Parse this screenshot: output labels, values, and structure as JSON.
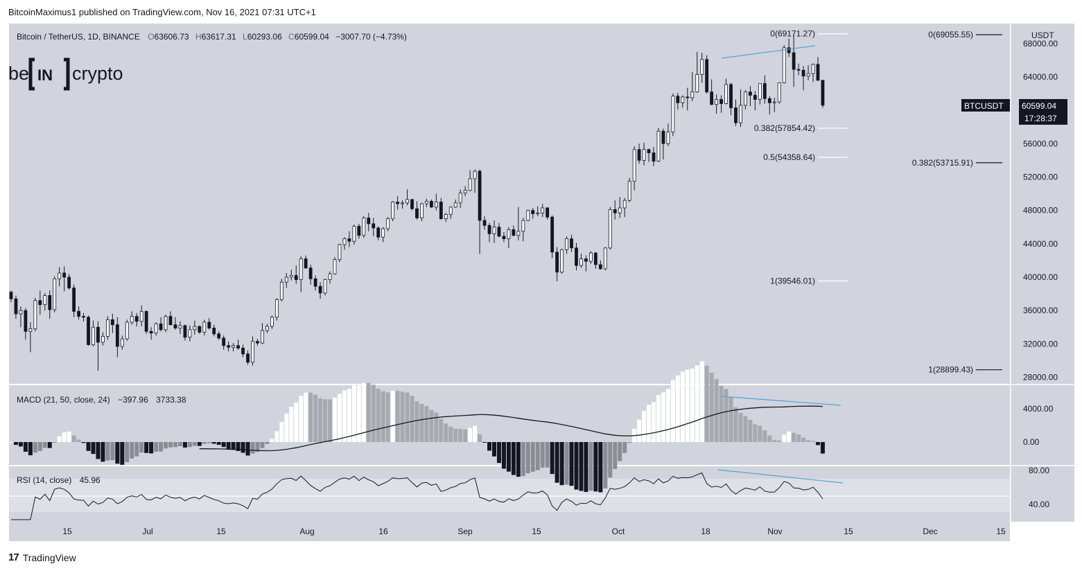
{
  "header": {
    "published": "BitcoinMaximus1 published on TradingView.com, Nov 16, 2021 07:31 UTC+1"
  },
  "legend": {
    "symbol": "Bitcoin / TetherUS, 1D, BINANCE",
    "open_prefix": "O",
    "open": "63606.73",
    "high_prefix": "H",
    "high": "63617.31",
    "low_prefix": "L",
    "low": "60293.06",
    "close_prefix": "C",
    "close": "60599.04",
    "change": "−3007.70 (−4.73%)"
  },
  "logo": {
    "left": "be",
    "mid": "IN",
    "right": "crypto"
  },
  "price_tag": {
    "ticker": "BTCUSDT",
    "price": "60599.04",
    "countdown": "17:28:37"
  },
  "axis": {
    "currency": "USDT",
    "price_ticks": [
      "68000.00",
      "64000.00",
      "60000.00",
      "56000.00",
      "52000.00",
      "48000.00",
      "44000.00",
      "40000.00",
      "36000.00",
      "32000.00",
      "28000.00"
    ],
    "macd_ticks": [
      "4000.00",
      "0.00"
    ],
    "rsi_ticks": [
      "80.00",
      "40.00"
    ],
    "time_ticks": [
      "15",
      "Jul",
      "15",
      "Aug",
      "16",
      "Sep",
      "15",
      "Oct",
      "18",
      "Nov",
      "15",
      "Dec",
      "15"
    ]
  },
  "fib_short": [
    {
      "label": "0(69171.27)",
      "value": 69171.27
    },
    {
      "label": "0.382(57854.42)",
      "value": 57854.42
    },
    {
      "label": "0.5(54358.64)",
      "value": 54358.64
    },
    {
      "label": "1(39546.01)",
      "value": 39546.01
    }
  ],
  "fib_long": [
    {
      "label": "0(69055.55)",
      "value": 69055.55
    },
    {
      "label": "0.382(53715.91)",
      "value": 53715.91
    },
    {
      "label": "1(28899.43)",
      "value": 28899.43
    }
  ],
  "macd_legend": {
    "name": "MACD (21, 50, close, 24)",
    "v1": "−397.96",
    "v2": "3733.38"
  },
  "rsi_legend": {
    "name": "RSI (14, close)",
    "value": "45.96"
  },
  "footer": {
    "brand": "TradingView"
  },
  "colors": {
    "background": "#d1d4dc",
    "bull": "#ffffff",
    "bear": "#131722",
    "divergence": "#4fa3d9",
    "macd_hist_pos_strong": "#ffffff",
    "macd_hist_pos_weak": "#a6a9b0",
    "macd_hist_neg_weak": "#8a8d93",
    "macd_hist_neg_strong": "#131722"
  },
  "chart_data": {
    "type": "candlestick",
    "ylim": [
      26000,
      70000
    ],
    "candles": [
      [
        38200,
        38400,
        37000,
        37400
      ],
      [
        37400,
        37800,
        35000,
        35600
      ],
      [
        35600,
        36500,
        34000,
        36000
      ],
      [
        36000,
        36300,
        32500,
        33500
      ],
      [
        33500,
        34600,
        31000,
        33800
      ],
      [
        33800,
        37500,
        33500,
        37200
      ],
      [
        37200,
        38400,
        35500,
        36700
      ],
      [
        36700,
        38100,
        36000,
        37800
      ],
      [
        37800,
        38400,
        35000,
        36100
      ],
      [
        36100,
        40100,
        35800,
        39800
      ],
      [
        39800,
        41200,
        38900,
        40500
      ],
      [
        40500,
        41300,
        38300,
        40000
      ],
      [
        40000,
        40400,
        38500,
        38700
      ],
      [
        38700,
        39100,
        35200,
        35900
      ],
      [
        35900,
        36500,
        34900,
        35300
      ],
      [
        35300,
        35700,
        34700,
        35200
      ],
      [
        35200,
        35400,
        31800,
        31900
      ],
      [
        31900,
        34800,
        31700,
        34000
      ],
      [
        34000,
        34700,
        28800,
        32200
      ],
      [
        32200,
        33400,
        31800,
        32900
      ],
      [
        32900,
        35300,
        32500,
        34900
      ],
      [
        34900,
        35600,
        33300,
        34300
      ],
      [
        34300,
        35200,
        30400,
        31700
      ],
      [
        31700,
        33000,
        31300,
        32600
      ],
      [
        32600,
        34900,
        32400,
        34600
      ],
      [
        34600,
        35900,
        34300,
        35300
      ],
      [
        35300,
        35700,
        34100,
        34700
      ],
      [
        34700,
        36600,
        34100,
        35900
      ],
      [
        35900,
        36000,
        33200,
        33500
      ],
      [
        33500,
        34000,
        32500,
        33300
      ],
      [
        33300,
        34600,
        33000,
        34400
      ],
      [
        34400,
        35200,
        33500,
        33700
      ],
      [
        33700,
        35500,
        33400,
        35300
      ],
      [
        35300,
        35900,
        34200,
        34300
      ],
      [
        34300,
        35200,
        33700,
        33900
      ],
      [
        33900,
        34700,
        33200,
        34200
      ],
      [
        34200,
        34300,
        32400,
        32800
      ],
      [
        32800,
        34200,
        32300,
        33700
      ],
      [
        33700,
        34800,
        33100,
        34100
      ],
      [
        34100,
        34200,
        33200,
        33400
      ],
      [
        33400,
        34900,
        33000,
        34600
      ],
      [
        34600,
        35100,
        33700,
        33900
      ],
      [
        33900,
        34300,
        32900,
        33200
      ],
      [
        33200,
        33500,
        32500,
        32700
      ],
      [
        32700,
        33000,
        31300,
        31800
      ],
      [
        31800,
        32300,
        31100,
        31600
      ],
      [
        31600,
        32100,
        31100,
        31800
      ],
      [
        31800,
        32500,
        31300,
        31500
      ],
      [
        31500,
        31900,
        30400,
        30800
      ],
      [
        30800,
        31200,
        29500,
        29800
      ],
      [
        29800,
        32900,
        29400,
        32300
      ],
      [
        32300,
        32600,
        31800,
        32100
      ],
      [
        32100,
        34500,
        32000,
        33600
      ],
      [
        33600,
        34400,
        33300,
        34100
      ],
      [
        34100,
        35400,
        33800,
        35200
      ],
      [
        35200,
        37500,
        34800,
        37300
      ],
      [
        37300,
        39800,
        37100,
        39400
      ],
      [
        39400,
        40500,
        38700,
        40000
      ],
      [
        40000,
        40900,
        39600,
        40200
      ],
      [
        40200,
        41400,
        39200,
        39700
      ],
      [
        39700,
        42500,
        38200,
        42200
      ],
      [
        42200,
        42600,
        41000,
        41100
      ],
      [
        41100,
        41500,
        39100,
        39800
      ],
      [
        39800,
        40200,
        38400,
        38900
      ],
      [
        38900,
        39400,
        37400,
        38100
      ],
      [
        38100,
        39800,
        37800,
        39700
      ],
      [
        39700,
        40700,
        39200,
        40400
      ],
      [
        40400,
        42400,
        40300,
        42100
      ],
      [
        42100,
        44000,
        41800,
        43900
      ],
      [
        43900,
        44800,
        43300,
        44600
      ],
      [
        44600,
        45500,
        43600,
        44300
      ],
      [
        44300,
        46300,
        43900,
        46100
      ],
      [
        46100,
        46400,
        44600,
        45000
      ],
      [
        45000,
        47300,
        44700,
        47100
      ],
      [
        47100,
        47700,
        45500,
        46400
      ],
      [
        46400,
        47100,
        44900,
        45900
      ],
      [
        45900,
        46100,
        44400,
        44800
      ],
      [
        44800,
        46000,
        44200,
        45800
      ],
      [
        45800,
        47200,
        45500,
        47000
      ],
      [
        47000,
        49100,
        46700,
        49000
      ],
      [
        49000,
        49700,
        48100,
        48800
      ],
      [
        48800,
        49200,
        48200,
        48900
      ],
      [
        48900,
        50500,
        48600,
        49300
      ],
      [
        49300,
        49400,
        48000,
        48200
      ],
      [
        48200,
        49100,
        46900,
        47100
      ],
      [
        47100,
        48900,
        46700,
        48800
      ],
      [
        48800,
        49400,
        48400,
        49100
      ],
      [
        49100,
        49300,
        48300,
        48400
      ],
      [
        48400,
        50000,
        48000,
        49000
      ],
      [
        49000,
        49500,
        46900,
        47000
      ],
      [
        47000,
        47700,
        46600,
        47500
      ],
      [
        47500,
        48500,
        47000,
        48400
      ],
      [
        48400,
        49300,
        48300,
        48900
      ],
      [
        48900,
        50500,
        48300,
        50100
      ],
      [
        50100,
        50900,
        49700,
        50400
      ],
      [
        50400,
        52800,
        50300,
        51800
      ],
      [
        51800,
        52900,
        50100,
        52700
      ],
      [
        52700,
        52900,
        42800,
        46800
      ],
      [
        46800,
        47300,
        45700,
        46200
      ],
      [
        46200,
        46500,
        44200,
        45200
      ],
      [
        45200,
        46800,
        44100,
        46000
      ],
      [
        46000,
        46500,
        44800,
        44900
      ],
      [
        44900,
        45400,
        44200,
        44600
      ],
      [
        44600,
        46000,
        43500,
        45700
      ],
      [
        45700,
        46200,
        44900,
        45000
      ],
      [
        45000,
        48400,
        44400,
        45500
      ],
      [
        45500,
        47100,
        44300,
        46800
      ],
      [
        46800,
        48100,
        46700,
        48000
      ],
      [
        48000,
        48300,
        47000,
        47600
      ],
      [
        47600,
        48500,
        47300,
        47700
      ],
      [
        47700,
        48800,
        47200,
        48300
      ],
      [
        48300,
        48400,
        46900,
        47200
      ],
      [
        47200,
        47400,
        42300,
        43000
      ],
      [
        43000,
        43600,
        39500,
        40600
      ],
      [
        40600,
        43400,
        40400,
        43300
      ],
      [
        43300,
        44900,
        42800,
        44600
      ],
      [
        44600,
        45100,
        43000,
        43500
      ],
      [
        43500,
        44100,
        40800,
        41400
      ],
      [
        41400,
        42800,
        41100,
        42200
      ],
      [
        42200,
        42600,
        40700,
        41900
      ],
      [
        41900,
        43100,
        41600,
        42900
      ],
      [
        42900,
        43000,
        41000,
        41500
      ],
      [
        41500,
        42000,
        40900,
        41000
      ],
      [
        41000,
        43600,
        40800,
        43500
      ],
      [
        43500,
        48400,
        43300,
        48100
      ],
      [
        48100,
        49200,
        46900,
        47700
      ],
      [
        47700,
        49600,
        47100,
        48300
      ],
      [
        48300,
        49500,
        47200,
        49200
      ],
      [
        49200,
        51900,
        49000,
        51500
      ],
      [
        51500,
        55700,
        50400,
        55300
      ],
      [
        55300,
        56000,
        53600,
        54000
      ],
      [
        54000,
        56100,
        53400,
        55300
      ],
      [
        55300,
        55400,
        53800,
        54900
      ],
      [
        54900,
        55600,
        53300,
        53900
      ],
      [
        53900,
        57900,
        53800,
        57500
      ],
      [
        57500,
        57800,
        54100,
        56000
      ],
      [
        56000,
        58400,
        55700,
        57400
      ],
      [
        57400,
        62000,
        56900,
        61700
      ],
      [
        61700,
        62100,
        60100,
        60900
      ],
      [
        60900,
        61800,
        60300,
        61600
      ],
      [
        61600,
        62700,
        60000,
        61500
      ],
      [
        61500,
        64600,
        61100,
        62200
      ],
      [
        62200,
        67000,
        62100,
        64300
      ],
      [
        64300,
        66900,
        63300,
        66100
      ],
      [
        66100,
        66600,
        62000,
        62200
      ],
      [
        62200,
        63700,
        60600,
        60700
      ],
      [
        60700,
        61900,
        59600,
        61300
      ],
      [
        61300,
        61800,
        59700,
        60800
      ],
      [
        60800,
        63800,
        60700,
        63100
      ],
      [
        63100,
        63300,
        59400,
        60300
      ],
      [
        60300,
        61300,
        58100,
        58500
      ],
      [
        58500,
        62500,
        58000,
        60600
      ],
      [
        60600,
        62400,
        60100,
        62200
      ],
      [
        62200,
        62900,
        60500,
        61800
      ],
      [
        61800,
        62300,
        60000,
        61300
      ],
      [
        61300,
        63100,
        60700,
        63200
      ],
      [
        63200,
        64200,
        60800,
        61400
      ],
      [
        61400,
        61700,
        59500,
        60900
      ],
      [
        60900,
        61500,
        59800,
        61000
      ],
      [
        61000,
        63100,
        60800,
        63300
      ],
      [
        63300,
        67800,
        63200,
        67500
      ],
      [
        67500,
        68600,
        66400,
        66900
      ],
      [
        66900,
        69000,
        62800,
        64900
      ],
      [
        64900,
        65600,
        64200,
        64800
      ],
      [
        64800,
        65300,
        62400,
        64100
      ],
      [
        64100,
        65400,
        63600,
        64400
      ],
      [
        64400,
        65600,
        63400,
        65500
      ],
      [
        65500,
        66400,
        63500,
        63600
      ],
      [
        63600,
        63600,
        60300,
        60600
      ]
    ]
  }
}
